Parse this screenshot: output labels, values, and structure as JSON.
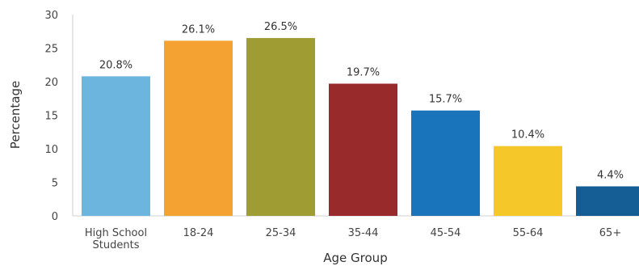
{
  "chart_data": {
    "type": "bar",
    "xlabel": "Age Group",
    "ylabel": "Percentage",
    "ylim": [
      0,
      30
    ],
    "yticks": [
      0,
      5,
      10,
      15,
      20,
      25,
      30
    ],
    "grid": false,
    "legend": "none",
    "categories": [
      [
        "High School",
        "Students"
      ],
      [
        "18-24"
      ],
      [
        "25-34"
      ],
      [
        "35-44"
      ],
      [
        "45-54"
      ],
      [
        "55-64"
      ],
      [
        "65+"
      ]
    ],
    "values": [
      20.8,
      26.1,
      26.5,
      19.7,
      15.7,
      10.4,
      4.4
    ],
    "data_labels": [
      "20.8%",
      "26.1%",
      "26.5%",
      "19.7%",
      "15.7%",
      "10.4%",
      "4.4%"
    ],
    "colors": [
      "#6bb5df",
      "#f4a231",
      "#a09c34",
      "#992a2b",
      "#1a74bb",
      "#f6c729",
      "#155e95"
    ]
  }
}
